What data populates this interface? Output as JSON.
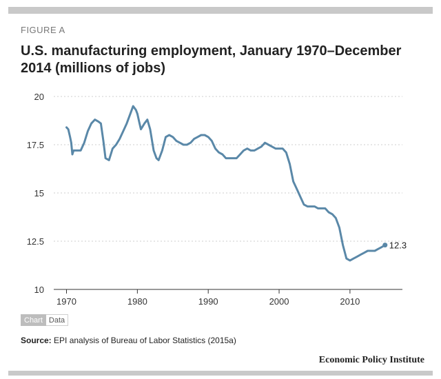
{
  "figure_label": "FIGURE A",
  "title": "U.S. manufacturing employment, January 1970–December 2014 (millions of jobs)",
  "toggle": {
    "chart_label": "Chart",
    "data_label": "Data"
  },
  "source": {
    "prefix": "Source:",
    "text": "EPI analysis of Bureau of Labor Statistics (2015a)"
  },
  "brand": "Economic Policy Institute",
  "colors": {
    "line": "#5a88a8",
    "grid": "#cccccc",
    "frame": "#c9c9c9"
  },
  "chart_data": {
    "type": "line",
    "title": "U.S. manufacturing employment, January 1970–December 2014 (millions of jobs)",
    "xlabel": "",
    "ylabel": "",
    "xlim": [
      1968.2,
      2017.4
    ],
    "ylim": [
      10,
      20
    ],
    "x_ticks": [
      1970,
      1980,
      1990,
      2000,
      2010
    ],
    "y_ticks": [
      10,
      12.5,
      15,
      17.5,
      20
    ],
    "y_tick_labels": [
      "10",
      "12.5",
      "15",
      "17.5",
      "20"
    ],
    "grid": true,
    "end_label": "12.3",
    "series": [
      {
        "x": [
          1970.0,
          1970.25,
          1970.5,
          1970.67,
          1970.83,
          1971.0,
          1971.5,
          1972.0,
          1972.5,
          1973.0,
          1973.5,
          1974.0,
          1974.5,
          1974.85,
          1975.2,
          1975.5,
          1976.0,
          1976.5,
          1977.0,
          1977.5,
          1978.0,
          1978.5,
          1979.0,
          1979.4,
          1979.8,
          1980.0,
          1980.25,
          1980.5,
          1981.0,
          1981.4,
          1981.8,
          1982.3,
          1982.7,
          1983.0,
          1983.5,
          1984.0,
          1984.5,
          1985.0,
          1985.5,
          1986.0,
          1986.5,
          1987.0,
          1987.5,
          1988.0,
          1988.5,
          1989.0,
          1989.5,
          1990.0,
          1990.5,
          1991.0,
          1991.5,
          1992.0,
          1992.5,
          1993.0,
          1993.5,
          1994.0,
          1994.5,
          1995.0,
          1995.5,
          1996.0,
          1996.5,
          1997.0,
          1997.5,
          1998.0,
          1998.5,
          1999.0,
          1999.5,
          2000.0,
          2000.5,
          2001.0,
          2001.5,
          2002.0,
          2002.5,
          2003.0,
          2003.5,
          2004.0,
          2004.5,
          2005.0,
          2005.5,
          2006.0,
          2006.5,
          2007.0,
          2007.5,
          2008.0,
          2008.5,
          2009.0,
          2009.5,
          2010.0,
          2010.5,
          2011.0,
          2011.5,
          2012.0,
          2012.5,
          2013.0,
          2013.5,
          2014.0,
          2014.5,
          2014.95
        ],
        "values": [
          18.4,
          18.3,
          17.9,
          17.6,
          17.0,
          17.2,
          17.2,
          17.2,
          17.6,
          18.2,
          18.6,
          18.8,
          18.7,
          18.6,
          17.7,
          16.8,
          16.7,
          17.3,
          17.5,
          17.8,
          18.2,
          18.6,
          19.1,
          19.5,
          19.3,
          19.1,
          18.7,
          18.3,
          18.6,
          18.8,
          18.3,
          17.2,
          16.8,
          16.7,
          17.2,
          17.9,
          18.0,
          17.9,
          17.7,
          17.6,
          17.5,
          17.5,
          17.6,
          17.8,
          17.9,
          18.0,
          18.0,
          17.9,
          17.7,
          17.3,
          17.1,
          17.0,
          16.8,
          16.8,
          16.8,
          16.8,
          17.0,
          17.2,
          17.3,
          17.2,
          17.2,
          17.3,
          17.4,
          17.6,
          17.5,
          17.4,
          17.3,
          17.3,
          17.3,
          17.1,
          16.5,
          15.6,
          15.2,
          14.8,
          14.4,
          14.3,
          14.3,
          14.3,
          14.2,
          14.2,
          14.2,
          14.0,
          13.9,
          13.7,
          13.2,
          12.3,
          11.6,
          11.5,
          11.6,
          11.7,
          11.8,
          11.9,
          12.0,
          12.0,
          12.0,
          12.1,
          12.2,
          12.3
        ]
      }
    ]
  }
}
